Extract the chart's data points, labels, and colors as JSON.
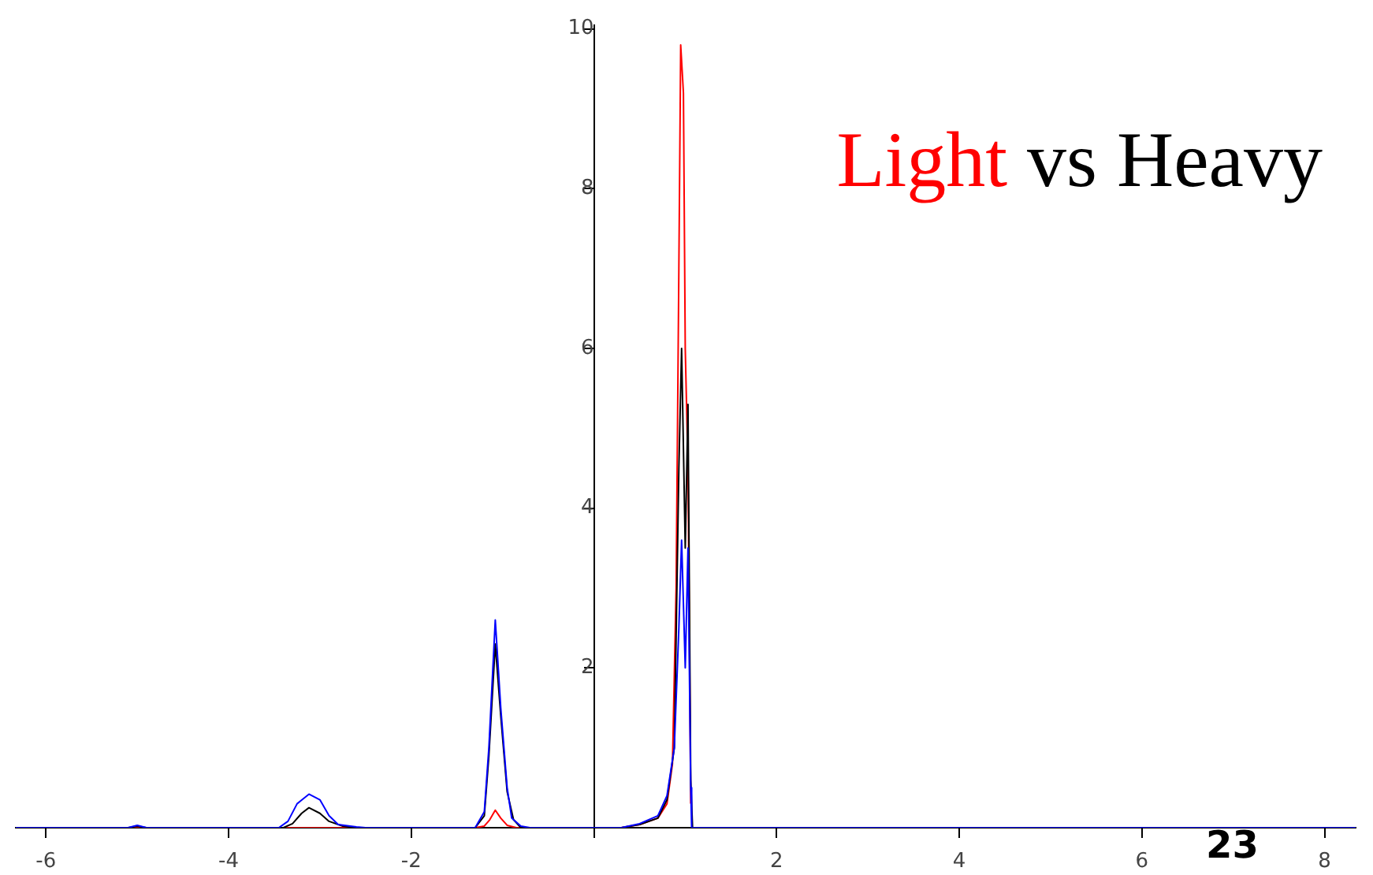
{
  "chart_data": {
    "type": "line",
    "title": "Light vs Heavy",
    "xlim": [
      -6.33,
      8.34
    ],
    "ylim": [
      0,
      10.05
    ],
    "xticks": [
      -6,
      -4,
      -2,
      {
        "value": 0,
        "label": null
      },
      2,
      4,
      6,
      8
    ],
    "yticks": [
      {
        "value": 0,
        "label": null
      },
      2,
      4,
      6,
      8,
      10
    ],
    "grid": false,
    "legend": false,
    "annotations": [
      "23"
    ],
    "series": [
      {
        "color": "#ff0000",
        "x": [
          -6.33,
          -3.4,
          -2.8,
          -1.3,
          -1.2,
          -1.14,
          -1.08,
          -1.02,
          -0.95,
          -0.85,
          0.3,
          0.5,
          0.7,
          0.8,
          0.86,
          0.9,
          0.93,
          0.95,
          0.98,
          1.0,
          1.03,
          1.06
        ],
        "values": [
          0,
          0,
          0,
          0,
          0.02,
          0.1,
          0.22,
          0.12,
          0.03,
          0,
          0,
          0.04,
          0.12,
          0.3,
          0.8,
          3.0,
          7.0,
          9.8,
          9.2,
          6.0,
          4.5,
          0.3
        ]
      },
      {
        "color": "#000000",
        "x": [
          -6.33,
          -5.1,
          -5.0,
          -4.9,
          -3.4,
          -3.3,
          -3.2,
          -3.12,
          -3.0,
          -2.9,
          -2.75,
          -2.6,
          -1.3,
          -1.2,
          -1.15,
          -1.08,
          -1.02,
          -0.95,
          -0.88,
          -0.8,
          0.3,
          0.5,
          0.7,
          0.8,
          0.88,
          0.93,
          0.96,
          1.0,
          1.03,
          1.06,
          1.08,
          8.34
        ],
        "values": [
          0,
          0,
          0.02,
          0,
          0,
          0.05,
          0.18,
          0.25,
          0.18,
          0.08,
          0.02,
          0,
          0,
          0.15,
          0.9,
          2.3,
          1.4,
          0.45,
          0.1,
          0,
          0,
          0.04,
          0.12,
          0.35,
          1.0,
          4.5,
          6.0,
          3.5,
          5.3,
          0.6,
          0,
          0
        ]
      },
      {
        "color": "#0000ff",
        "x": [
          -6.33,
          -5.1,
          -5.0,
          -4.9,
          -3.45,
          -3.35,
          -3.25,
          -3.12,
          -3.0,
          -2.9,
          -2.8,
          -2.6,
          -2.5,
          -1.3,
          -1.2,
          -1.15,
          -1.08,
          -1.02,
          -0.95,
          -0.9,
          -0.8,
          -0.7,
          0.3,
          0.5,
          0.7,
          0.8,
          0.88,
          0.93,
          0.96,
          1.0,
          1.03,
          1.06,
          1.07,
          8.34
        ],
        "values": [
          0,
          0,
          0.03,
          0,
          0,
          0.08,
          0.3,
          0.42,
          0.35,
          0.15,
          0.04,
          0.01,
          0,
          0,
          0.2,
          1.0,
          2.6,
          1.5,
          0.5,
          0.12,
          0.02,
          0,
          0,
          0.05,
          0.15,
          0.4,
          1.0,
          2.5,
          3.6,
          2.0,
          3.5,
          0.5,
          0,
          0
        ]
      }
    ]
  }
}
